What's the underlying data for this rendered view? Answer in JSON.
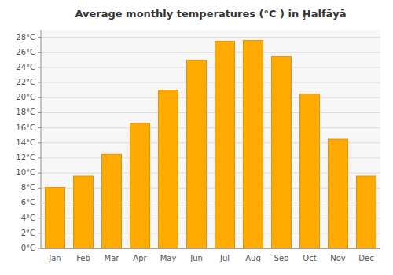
{
  "chart_data": {
    "type": "bar",
    "title": "Average monthly temperatures (°C ) in Ḩalfāyā",
    "categories": [
      "Jan",
      "Feb",
      "Mar",
      "Apr",
      "May",
      "Jun",
      "Jul",
      "Aug",
      "Sep",
      "Oct",
      "Nov",
      "Dec"
    ],
    "values": [
      8.1,
      9.6,
      12.5,
      16.6,
      21.0,
      25.0,
      27.5,
      27.6,
      25.5,
      20.5,
      14.5,
      9.6
    ],
    "color": "#FFAA00",
    "ylim": [
      0,
      29
    ],
    "yticks": [
      {
        "value": 0,
        "label": "0°C"
      },
      {
        "value": 2,
        "label": "2°C"
      },
      {
        "value": 4,
        "label": "4°C"
      },
      {
        "value": 6,
        "label": "6°C"
      },
      {
        "value": 8,
        "label": "8°C"
      },
      {
        "value": 10,
        "label": "10°C"
      },
      {
        "value": 12,
        "label": "12°C"
      },
      {
        "value": 14,
        "label": "14°C"
      },
      {
        "value": 16,
        "label": "16°C"
      },
      {
        "value": 18,
        "label": "18°C"
      },
      {
        "value": 20,
        "label": "20°C"
      },
      {
        "value": 22,
        "label": "22°C"
      },
      {
        "value": 24,
        "label": "24°C"
      },
      {
        "value": 26,
        "label": "26°C"
      },
      {
        "value": 28,
        "label": "28°C"
      }
    ],
    "grid": true
  }
}
